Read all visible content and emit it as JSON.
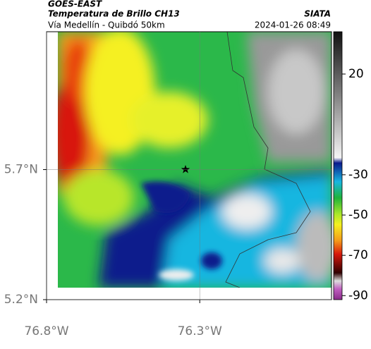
{
  "header": {
    "satellite": "GOES-EAST",
    "product": "Temperatura de Brillo CH13",
    "source": "SIATA",
    "route": "Vía Medellín - Quibdó 50km",
    "timestamp": "2024-01-26 08:49"
  },
  "map": {
    "xlim": [
      -76.8,
      -75.87
    ],
    "ylim": [
      5.2,
      6.23
    ],
    "xticks": [
      {
        "value": -76.8,
        "label": "76.8°W"
      },
      {
        "value": -76.3,
        "label": "76.3°W"
      }
    ],
    "yticks": [
      {
        "value": 5.2,
        "label": "5.2°N"
      },
      {
        "value": 5.7,
        "label": "5.7°N"
      }
    ],
    "grid": true
  },
  "colorbar": {
    "lim": [
      -92,
      41
    ],
    "ticks": [
      20,
      -30,
      -50,
      -70,
      -90
    ]
  }
}
